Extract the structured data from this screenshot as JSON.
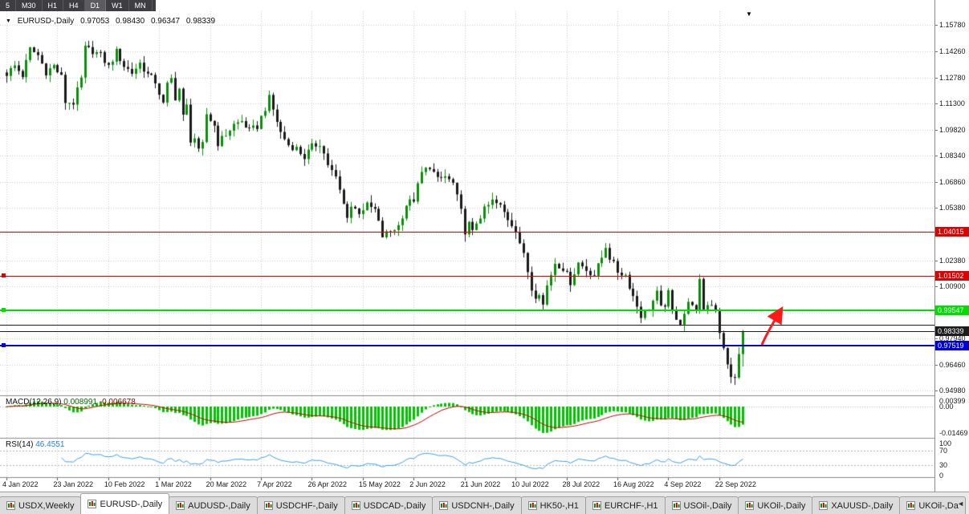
{
  "toolbar": {
    "buttons": [
      "5",
      "M30",
      "H1",
      "H4",
      "D1",
      "W1",
      "MN"
    ],
    "active": "D1"
  },
  "chart_header": {
    "expand_icon": "▼",
    "symbol": "EURUSD-,Daily",
    "open": "0.97053",
    "high": "0.98430",
    "low": "0.96347",
    "close": "0.98339"
  },
  "price_axis": {
    "ticks": [
      "1.15780",
      "1.14260",
      "1.12780",
      "1.11300",
      "1.09820",
      "1.08340",
      "1.06860",
      "1.05380",
      "1.03900",
      "1.02380",
      "1.00900",
      "0.99420",
      "0.97940",
      "0.96460",
      "0.94980"
    ]
  },
  "date_axis": {
    "ticks": [
      "4 Jan 2022",
      "23 Jan 2022",
      "10 Feb 2022",
      "1 Mar 2022",
      "20 Mar 2022",
      "7 Apr 2022",
      "26 Apr 2022",
      "15 May 2022",
      "2 Jun 2022",
      "21 Jun 2022",
      "10 Jul 2022",
      "28 Jul 2022",
      "16 Aug 2022",
      "4 Sep 2022",
      "22 Sep 2022"
    ]
  },
  "horizontal_lines": [
    {
      "id": "resistance-upper",
      "price": 1.04015,
      "label": "1.04015",
      "color": "#e00000",
      "width": 1,
      "badge": true,
      "handle": false
    },
    {
      "id": "resistance-lower",
      "price": 1.01502,
      "label": "1.01502",
      "color": "#e00000",
      "width": 1,
      "badge": true,
      "handle": true
    },
    {
      "id": "support-green",
      "price": 0.99547,
      "label": "0.99547",
      "color": "#00dd00",
      "width": 2,
      "badge": true,
      "handle": true
    },
    {
      "id": "black-level",
      "price": 0.9872,
      "label": "",
      "color": "#1c1c1c",
      "width": 1,
      "badge": false,
      "handle": false
    },
    {
      "id": "bid-price",
      "price": 0.98339,
      "label": "0.98339",
      "color": "#1c1c1c",
      "width": 1,
      "badge": true,
      "handle": false
    },
    {
      "id": "support-blue",
      "price": 0.97519,
      "label": "0.97519",
      "color": "#0000dd",
      "width": 2,
      "badge": true,
      "handle": true
    }
  ],
  "macd_panel": {
    "name": "MACD(12,26,9)",
    "value_main": "0.008991",
    "value_signal": "-0.006678",
    "axis_ticks": [
      "0.00399",
      "0.00",
      "-0.01469"
    ],
    "histogram_color": "#00c400",
    "signal_color": "#c40000"
  },
  "rsi_panel": {
    "name": "RSI(14)",
    "value": "46.4551",
    "axis_ticks": [
      "100",
      "70",
      "30",
      "0"
    ],
    "levels": [
      70,
      30
    ],
    "line_color": "#3a9fe8"
  },
  "annotations": {
    "shift_marker": "▼",
    "arrow_color": "#ff1a1a"
  },
  "tabs_bar": {
    "icon": "candlestick-chart-icon",
    "scroll_left": "◄",
    "tabs": [
      {
        "label": "USDX,Weekly"
      },
      {
        "label": "EURUSD-,Daily",
        "active": true
      },
      {
        "label": "AUDUSD-,Daily"
      },
      {
        "label": "USDCHF-,Daily"
      },
      {
        "label": "USDCAD-,Daily"
      },
      {
        "label": "USDCNH-,Daily"
      },
      {
        "label": "HK50-,H1"
      },
      {
        "label": "EURCHF-,H1"
      },
      {
        "label": "USOil-,Daily"
      },
      {
        "label": "UKOil-,Daily"
      },
      {
        "label": "XAUUSD-,Daily"
      },
      {
        "label": "UKOil-,Da"
      }
    ]
  },
  "chart_data": {
    "type": "candlestick",
    "symbol": "EURUSD",
    "timeframe": "Daily",
    "candle_count": 189,
    "x_tick_every": 13,
    "y_axis": {
      "max": 1.1578,
      "min": 0.9498
    },
    "last_candle": {
      "open": 0.97053,
      "high": 0.9843,
      "low": 0.96347,
      "close": 0.98339
    },
    "anchors": [
      [
        0,
        1.13
      ],
      [
        2,
        1.1345
      ],
      [
        4,
        1.129
      ],
      [
        6,
        1.144
      ],
      [
        8,
        1.1405
      ],
      [
        10,
        1.131
      ],
      [
        12,
        1.1345
      ],
      [
        14,
        1.128
      ],
      [
        15,
        1.114
      ],
      [
        17,
        1.1135
      ],
      [
        19,
        1.127
      ],
      [
        20,
        1.1445
      ],
      [
        22,
        1.143
      ],
      [
        24,
        1.1405
      ],
      [
        26,
        1.134
      ],
      [
        28,
        1.1425
      ],
      [
        30,
        1.1345
      ],
      [
        32,
        1.1305
      ],
      [
        34,
        1.136
      ],
      [
        36,
        1.1295
      ],
      [
        38,
        1.1255
      ],
      [
        40,
        1.1125
      ],
      [
        41,
        1.1235
      ],
      [
        42,
        1.127
      ],
      [
        43,
        1.1165
      ],
      [
        44,
        1.1215
      ],
      [
        45,
        1.1055
      ],
      [
        46,
        1.1115
      ],
      [
        47,
        1.0925
      ],
      [
        48,
        1.0935
      ],
      [
        49,
        1.0855
      ],
      [
        50,
        1.0895
      ],
      [
        51,
        1.107
      ],
      [
        53,
        1.1005
      ],
      [
        54,
        1.0905
      ],
      [
        56,
        1.0955
      ],
      [
        58,
        1.101
      ],
      [
        60,
        1.103
      ],
      [
        62,
        1.0975
      ],
      [
        64,
        1.1
      ],
      [
        66,
        1.1105
      ],
      [
        67,
        1.116
      ],
      [
        68,
        1.1095
      ],
      [
        70,
        1.0965
      ],
      [
        72,
        1.0895
      ],
      [
        74,
        1.0875
      ],
      [
        76,
        1.0825
      ],
      [
        78,
        1.0885
      ],
      [
        80,
        1.0905
      ],
      [
        82,
        1.0785
      ],
      [
        84,
        1.0705
      ],
      [
        85,
        1.0635
      ],
      [
        86,
        1.0555
      ],
      [
        87,
        1.0495
      ],
      [
        88,
        1.0545
      ],
      [
        90,
        1.0515
      ],
      [
        92,
        1.055
      ],
      [
        94,
        1.0525
      ],
      [
        96,
        1.0375
      ],
      [
        98,
        1.0405
      ],
      [
        100,
        1.0435
      ],
      [
        102,
        1.0555
      ],
      [
        104,
        1.0585
      ],
      [
        106,
        1.0735
      ],
      [
        108,
        1.0775
      ],
      [
        110,
        1.0695
      ],
      [
        112,
        1.0715
      ],
      [
        114,
        1.0675
      ],
      [
        116,
        1.0515
      ],
      [
        117,
        1.0405
      ],
      [
        118,
        1.0445
      ],
      [
        119,
        1.0395
      ],
      [
        120,
        1.0455
      ],
      [
        122,
        1.0525
      ],
      [
        124,
        1.0575
      ],
      [
        126,
        1.0545
      ],
      [
        128,
        1.0475
      ],
      [
        130,
        1.0415
      ],
      [
        132,
        1.0265
      ],
      [
        133,
        1.0175
      ],
      [
        134,
        1.0075
      ],
      [
        135,
        1.004
      ],
      [
        136,
        1.006
      ],
      [
        137,
        0.9985
      ],
      [
        138,
        1.0095
      ],
      [
        140,
        1.0225
      ],
      [
        142,
        1.0195
      ],
      [
        144,
        1.0115
      ],
      [
        146,
        1.0225
      ],
      [
        148,
        1.0185
      ],
      [
        150,
        1.0155
      ],
      [
        152,
        1.0255
      ],
      [
        153,
        1.032
      ],
      [
        154,
        1.0255
      ],
      [
        156,
        1.0175
      ],
      [
        158,
        1.0155
      ],
      [
        160,
        1.0035
      ],
      [
        162,
        0.9925
      ],
      [
        164,
        0.9965
      ],
      [
        166,
        1.005
      ],
      [
        167,
        0.9965
      ],
      [
        168,
        0.999
      ],
      [
        169,
        1.005
      ],
      [
        170,
        0.9945
      ],
      [
        172,
        0.9885
      ],
      [
        174,
        0.999
      ],
      [
        175,
        1.0
      ],
      [
        176,
        0.994
      ],
      [
        177,
        1.0115
      ],
      [
        178,
        0.9965
      ],
      [
        179,
        0.9985
      ],
      [
        180,
        0.9995
      ],
      [
        181,
        0.996
      ],
      [
        182,
        0.9835
      ],
      [
        183,
        0.973
      ],
      [
        184,
        0.964
      ],
      [
        185,
        0.9585
      ],
      [
        186,
        0.956
      ],
      [
        187,
        0.9705
      ],
      [
        188,
        0.98339
      ]
    ],
    "indicators": {
      "macd": {
        "fast": 12,
        "slow": 26,
        "signal": 9
      },
      "rsi": {
        "period": 14,
        "last_value": 46.4551
      }
    },
    "colors": {
      "up": "#0a8f0a",
      "down": "#1a1a1a",
      "grid": "#cccccc",
      "separator": "#8a8a8a",
      "background": "#ffffff"
    }
  }
}
